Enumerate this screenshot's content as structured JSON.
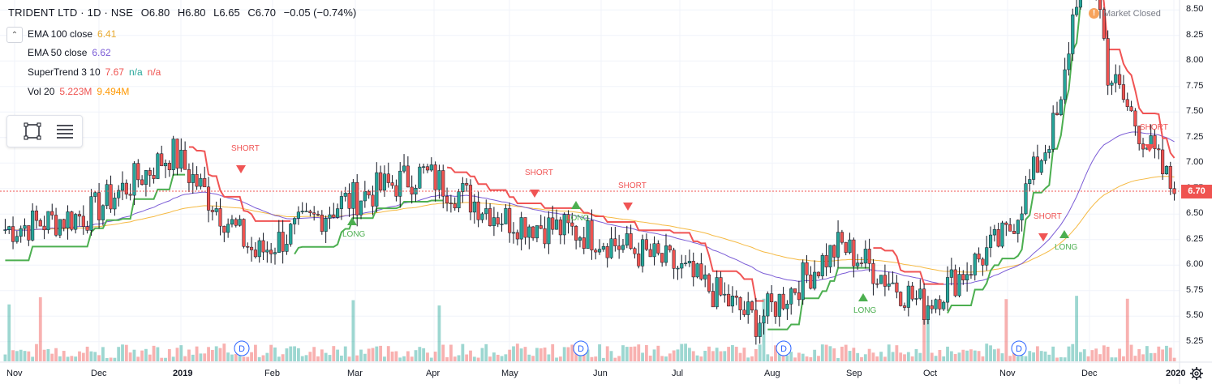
{
  "header": {
    "symbol": "TRIDENT LTD · 1D · NSE",
    "open": "O6.80",
    "high": "H6.80",
    "low": "L6.65",
    "close": "C6.70",
    "change": "−0.05 (−0.74%)"
  },
  "indicators": [
    {
      "label": "EMA 100 close",
      "value": "6.41",
      "color": "#e8a92e"
    },
    {
      "label": "EMA 50 close",
      "value": "6.62",
      "color": "#7b5cd6"
    },
    {
      "label": "SuperTrend 3 10",
      "value": "7.67",
      "value2": "n/a",
      "value3": "n/a",
      "color": "#ef5350",
      "color2": "#26a69a"
    },
    {
      "label": "Vol 20",
      "value": "5.223M",
      "value2": "9.494M",
      "color": "#ef5350",
      "color2": "#ff9800"
    }
  ],
  "market_status": {
    "icon": "warning-icon",
    "text": "Market Closed"
  },
  "toolbox": {
    "tools": [
      "rectangle-tool-icon",
      "lines-tool-icon"
    ]
  },
  "last_price": "6.70",
  "price_axis": {
    "ticks": [
      "8.50",
      "8.25",
      "8.00",
      "7.75",
      "7.50",
      "7.25",
      "7.00",
      "6.75",
      "6.50",
      "6.25",
      "6.00",
      "5.75",
      "5.50",
      "5.25"
    ]
  },
  "time_axis": {
    "ticks": [
      "Nov",
      "Dec",
      "2019",
      "Feb",
      "Mar",
      "Apr",
      "May",
      "Jun",
      "Jul",
      "Aug",
      "Sep",
      "Oct",
      "Nov",
      "Dec",
      "2020"
    ]
  },
  "signals": {
    "short_label": "SHORT",
    "long_label": "LONG"
  },
  "dividend_marker": "D",
  "colors": {
    "up": "#26a69a",
    "down": "#ef5350",
    "ema100": "#f5b942",
    "ema50": "#7b5cd6",
    "st_red": "#f05454",
    "st_green": "#4caf50"
  },
  "chart_data": {
    "type": "candlestick",
    "symbol": "TRIDENT LTD",
    "interval": "1D",
    "ylim": [
      5.2,
      8.55
    ],
    "x_ticks": [
      "Nov",
      "Dec",
      "2019",
      "Feb",
      "Mar",
      "Apr",
      "May",
      "Jun",
      "Jul",
      "Aug",
      "Sep",
      "Oct",
      "Nov",
      "Dec",
      "2020"
    ],
    "key_points": [
      {
        "period": "Nov 2018",
        "close": 6.35
      },
      {
        "period": "Dec 2018",
        "close": 6.5
      },
      {
        "period": "Jan 2019",
        "close": 7.1
      },
      {
        "period": "Feb 2019",
        "close": 6.1
      },
      {
        "period": "Mar 2019",
        "close": 6.6
      },
      {
        "period": "Apr 2019",
        "close": 6.9
      },
      {
        "period": "May 2019",
        "close": 6.45
      },
      {
        "period": "Jun 2019",
        "close": 6.3
      },
      {
        "period": "Jul 2019",
        "close": 6.0
      },
      {
        "period": "Aug 2019",
        "close": 5.45
      },
      {
        "period": "Sep 2019",
        "close": 6.2
      },
      {
        "period": "Oct 2019",
        "close": 5.6
      },
      {
        "period": "Nov 2019",
        "close": 6.3
      },
      {
        "period": "Dec 2019",
        "close": 8.2
      },
      {
        "period": "Jan 2020",
        "close": 6.7
      }
    ],
    "last": {
      "open": 6.8,
      "high": 6.8,
      "low": 6.65,
      "close": 6.7
    }
  }
}
